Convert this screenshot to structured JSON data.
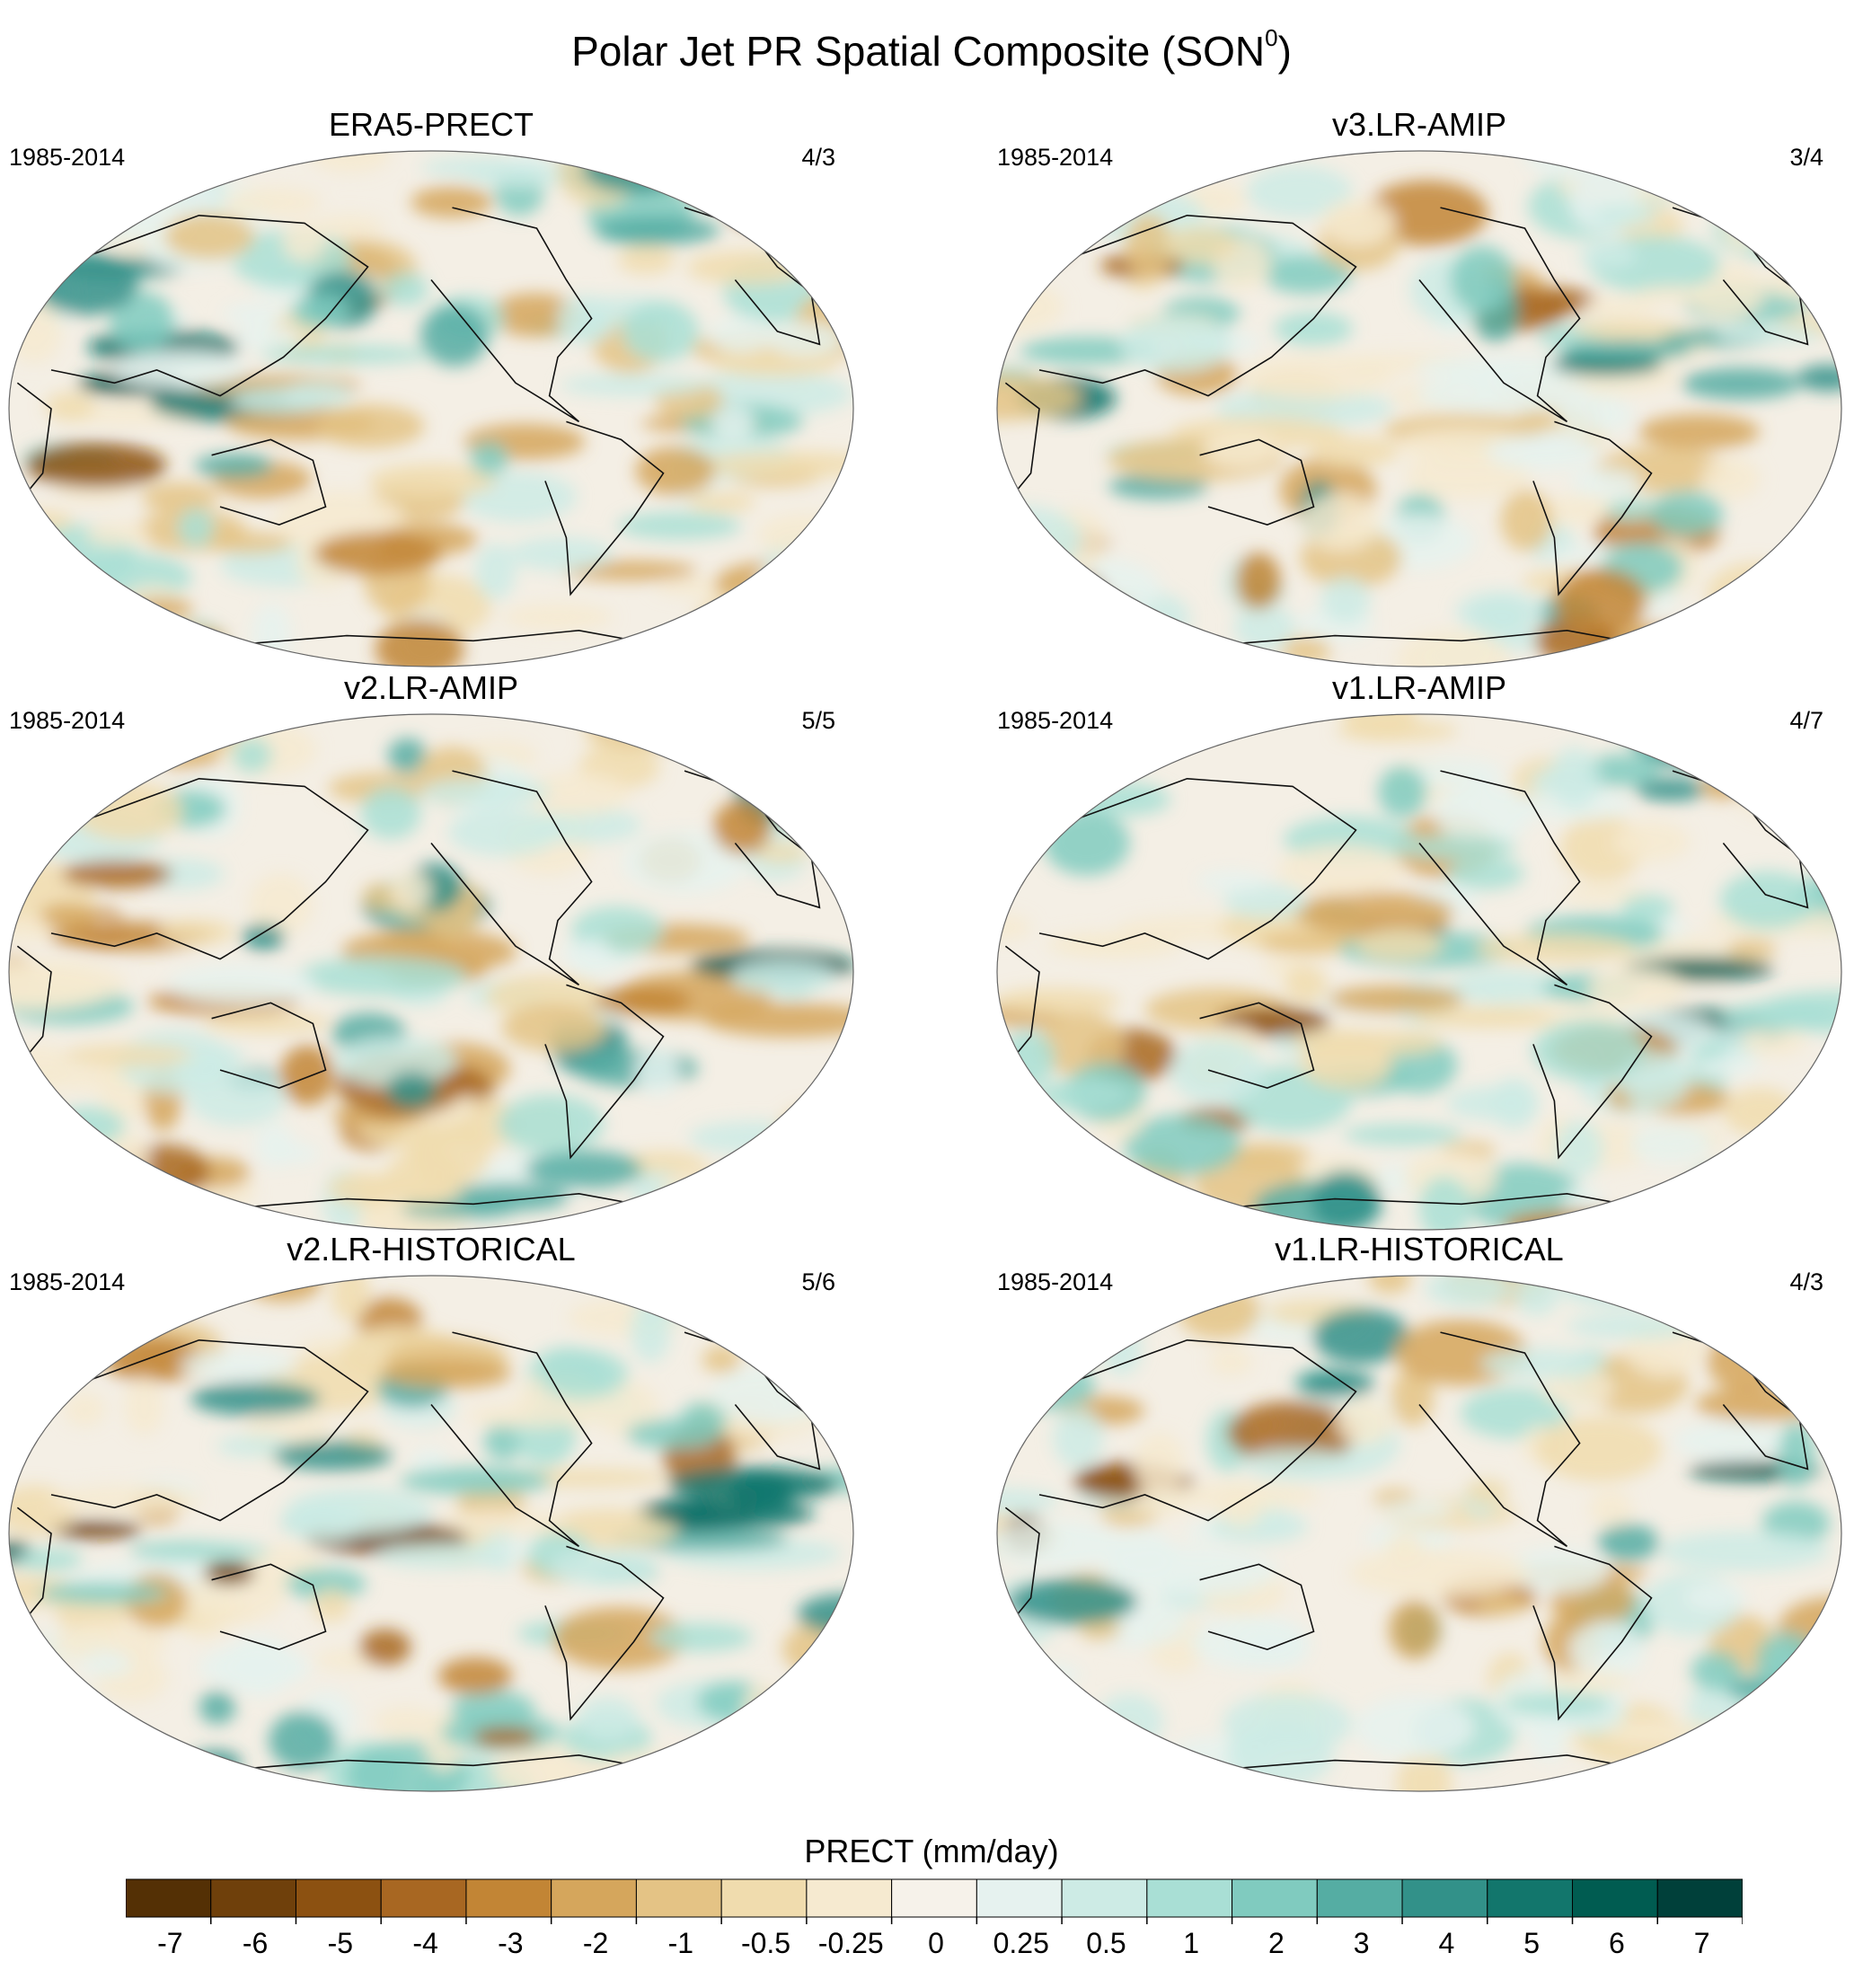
{
  "figure": {
    "title": "Polar Jet PR Spatial Composite (SON",
    "title_superscript": "0",
    "title_close": ")"
  },
  "panels": [
    {
      "title": "ERA5-PRECT",
      "period": "1985-2014",
      "ratio": "4/3",
      "seed": 11
    },
    {
      "title": "v3.LR-AMIP",
      "period": "1985-2014",
      "ratio": "3/4",
      "seed": 23
    },
    {
      "title": "v2.LR-AMIP",
      "period": "1985-2014",
      "ratio": "5/5",
      "seed": 37
    },
    {
      "title": "v1.LR-AMIP",
      "period": "1985-2014",
      "ratio": "4/7",
      "seed": 41
    },
    {
      "title": "v2.LR-HISTORICAL",
      "period": "1985-2014",
      "ratio": "5/6",
      "seed": 53
    },
    {
      "title": "v1.LR-HISTORICAL",
      "period": "1985-2014",
      "ratio": "4/3",
      "seed": 67
    }
  ],
  "colorbar": {
    "label": "PRECT (mm/day)",
    "ticks": [
      "-7",
      "-6",
      "-5",
      "-4",
      "-3",
      "-2",
      "-1",
      "-0.5",
      "-0.25",
      "0",
      "0.25",
      "0.5",
      "1",
      "2",
      "3",
      "4",
      "5",
      "6",
      "7"
    ],
    "colors": [
      "#543005",
      "#6f400b",
      "#8c5111",
      "#a86722",
      "#c28535",
      "#d5a65c",
      "#e4c385",
      "#f0dcae",
      "#f6ead0",
      "#f6f2ea",
      "#e6f2ef",
      "#cdebe5",
      "#a9dfd5",
      "#80cbbf",
      "#55ada3",
      "#329189",
      "#12766c",
      "#005c51",
      "#00403a"
    ]
  },
  "chart_data": {
    "type": "heatmap",
    "title": "Polar Jet PR Spatial Composite (SON0)",
    "variable": "PRECT",
    "units": "mm/day",
    "projection": "Robinson-like, Pacific-centered global maps",
    "contour_levels": [
      -7,
      -6,
      -5,
      -4,
      -3,
      -2,
      -1,
      -0.5,
      -0.25,
      0,
      0.25,
      0.5,
      1,
      2,
      3,
      4,
      5,
      6,
      7
    ],
    "panels": [
      {
        "name": "ERA5-PRECT",
        "period": "1985-2014",
        "count": "4/3"
      },
      {
        "name": "v3.LR-AMIP",
        "period": "1985-2014",
        "count": "3/4"
      },
      {
        "name": "v2.LR-AMIP",
        "period": "1985-2014",
        "count": "5/5"
      },
      {
        "name": "v1.LR-AMIP",
        "period": "1985-2014",
        "count": "4/7"
      },
      {
        "name": "v2.LR-HISTORICAL",
        "period": "1985-2014",
        "count": "5/6"
      },
      {
        "name": "v1.LR-HISTORICAL",
        "period": "1985-2014",
        "count": "4/3"
      }
    ]
  }
}
